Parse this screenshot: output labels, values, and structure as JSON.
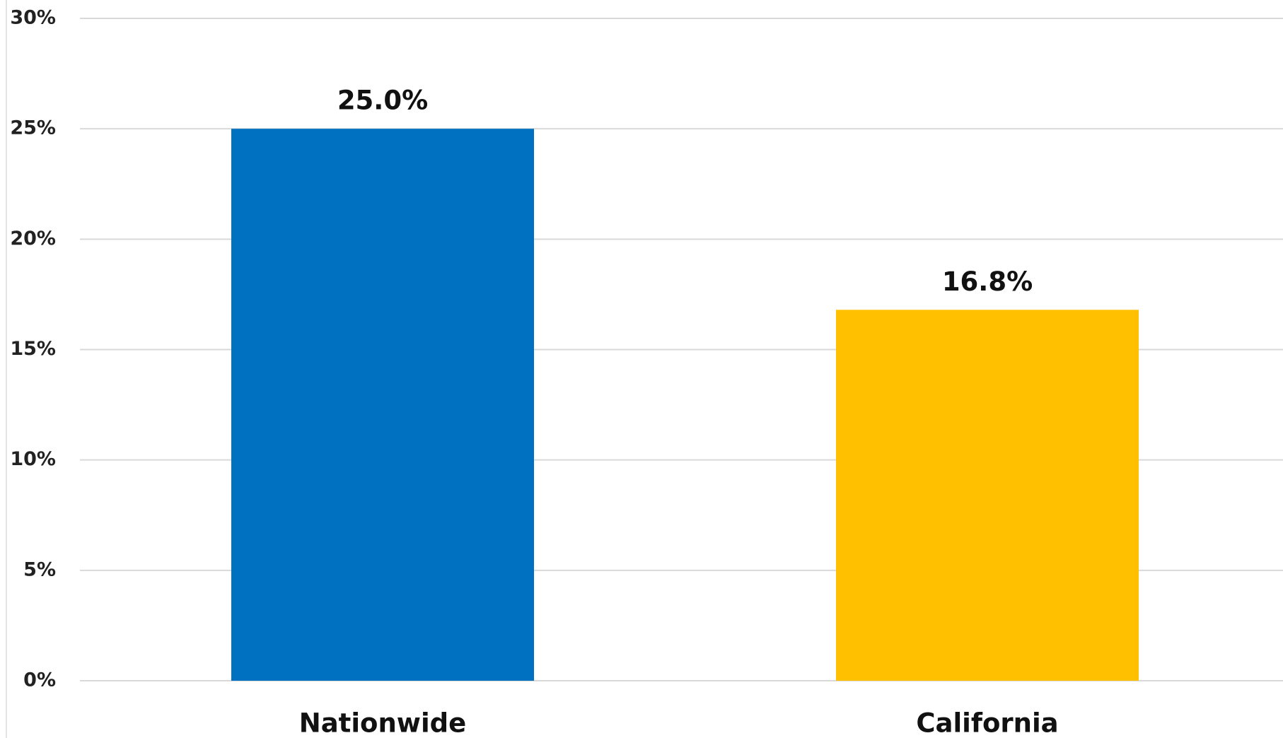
{
  "chart_data": {
    "type": "bar",
    "categories": [
      "Nationwide",
      "California"
    ],
    "values": [
      25.0,
      16.8
    ],
    "value_labels": [
      "25.0%",
      "16.8%"
    ],
    "colors": [
      "#0070c0",
      "#ffc000"
    ],
    "ylim": [
      0,
      30
    ],
    "yticks": [
      {
        "value": 0,
        "label": "0%"
      },
      {
        "value": 5,
        "label": "5%"
      },
      {
        "value": 10,
        "label": "10%"
      },
      {
        "value": 15,
        "label": "15%"
      },
      {
        "value": 20,
        "label": "20%"
      },
      {
        "value": 25,
        "label": "25%"
      },
      {
        "value": 30,
        "label": "30%"
      }
    ],
    "grid": true
  }
}
